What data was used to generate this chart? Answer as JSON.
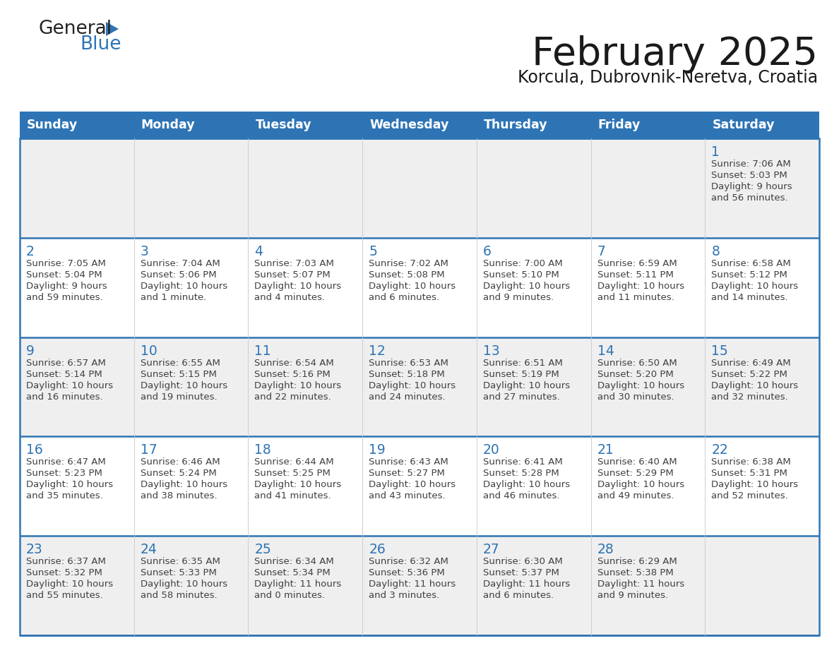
{
  "title": "February 2025",
  "subtitle": "Korcula, Dubrovnik-Neretva, Croatia",
  "header_color": "#2E74B5",
  "header_text_color": "#FFFFFF",
  "grid_line_color": "#2E74B5",
  "day_num_color": "#2E74B5",
  "text_color": "#404040",
  "bg_color": "#FFFFFF",
  "alt_row_color": "#EFEFEF",
  "weekdays": [
    "Sunday",
    "Monday",
    "Tuesday",
    "Wednesday",
    "Thursday",
    "Friday",
    "Saturday"
  ],
  "row_bg_pattern": [
    1,
    0,
    1,
    0,
    1
  ],
  "calendar": [
    [
      {
        "day": "",
        "sunrise": "",
        "sunset": "",
        "daylight": ""
      },
      {
        "day": "",
        "sunrise": "",
        "sunset": "",
        "daylight": ""
      },
      {
        "day": "",
        "sunrise": "",
        "sunset": "",
        "daylight": ""
      },
      {
        "day": "",
        "sunrise": "",
        "sunset": "",
        "daylight": ""
      },
      {
        "day": "",
        "sunrise": "",
        "sunset": "",
        "daylight": ""
      },
      {
        "day": "",
        "sunrise": "",
        "sunset": "",
        "daylight": ""
      },
      {
        "day": "1",
        "sunrise": "7:06 AM",
        "sunset": "5:03 PM",
        "daylight_line1": "Daylight: 9 hours",
        "daylight_line2": "and 56 minutes."
      }
    ],
    [
      {
        "day": "2",
        "sunrise": "7:05 AM",
        "sunset": "5:04 PM",
        "daylight_line1": "Daylight: 9 hours",
        "daylight_line2": "and 59 minutes."
      },
      {
        "day": "3",
        "sunrise": "7:04 AM",
        "sunset": "5:06 PM",
        "daylight_line1": "Daylight: 10 hours",
        "daylight_line2": "and 1 minute."
      },
      {
        "day": "4",
        "sunrise": "7:03 AM",
        "sunset": "5:07 PM",
        "daylight_line1": "Daylight: 10 hours",
        "daylight_line2": "and 4 minutes."
      },
      {
        "day": "5",
        "sunrise": "7:02 AM",
        "sunset": "5:08 PM",
        "daylight_line1": "Daylight: 10 hours",
        "daylight_line2": "and 6 minutes."
      },
      {
        "day": "6",
        "sunrise": "7:00 AM",
        "sunset": "5:10 PM",
        "daylight_line1": "Daylight: 10 hours",
        "daylight_line2": "and 9 minutes."
      },
      {
        "day": "7",
        "sunrise": "6:59 AM",
        "sunset": "5:11 PM",
        "daylight_line1": "Daylight: 10 hours",
        "daylight_line2": "and 11 minutes."
      },
      {
        "day": "8",
        "sunrise": "6:58 AM",
        "sunset": "5:12 PM",
        "daylight_line1": "Daylight: 10 hours",
        "daylight_line2": "and 14 minutes."
      }
    ],
    [
      {
        "day": "9",
        "sunrise": "6:57 AM",
        "sunset": "5:14 PM",
        "daylight_line1": "Daylight: 10 hours",
        "daylight_line2": "and 16 minutes."
      },
      {
        "day": "10",
        "sunrise": "6:55 AM",
        "sunset": "5:15 PM",
        "daylight_line1": "Daylight: 10 hours",
        "daylight_line2": "and 19 minutes."
      },
      {
        "day": "11",
        "sunrise": "6:54 AM",
        "sunset": "5:16 PM",
        "daylight_line1": "Daylight: 10 hours",
        "daylight_line2": "and 22 minutes."
      },
      {
        "day": "12",
        "sunrise": "6:53 AM",
        "sunset": "5:18 PM",
        "daylight_line1": "Daylight: 10 hours",
        "daylight_line2": "and 24 minutes."
      },
      {
        "day": "13",
        "sunrise": "6:51 AM",
        "sunset": "5:19 PM",
        "daylight_line1": "Daylight: 10 hours",
        "daylight_line2": "and 27 minutes."
      },
      {
        "day": "14",
        "sunrise": "6:50 AM",
        "sunset": "5:20 PM",
        "daylight_line1": "Daylight: 10 hours",
        "daylight_line2": "and 30 minutes."
      },
      {
        "day": "15",
        "sunrise": "6:49 AM",
        "sunset": "5:22 PM",
        "daylight_line1": "Daylight: 10 hours",
        "daylight_line2": "and 32 minutes."
      }
    ],
    [
      {
        "day": "16",
        "sunrise": "6:47 AM",
        "sunset": "5:23 PM",
        "daylight_line1": "Daylight: 10 hours",
        "daylight_line2": "and 35 minutes."
      },
      {
        "day": "17",
        "sunrise": "6:46 AM",
        "sunset": "5:24 PM",
        "daylight_line1": "Daylight: 10 hours",
        "daylight_line2": "and 38 minutes."
      },
      {
        "day": "18",
        "sunrise": "6:44 AM",
        "sunset": "5:25 PM",
        "daylight_line1": "Daylight: 10 hours",
        "daylight_line2": "and 41 minutes."
      },
      {
        "day": "19",
        "sunrise": "6:43 AM",
        "sunset": "5:27 PM",
        "daylight_line1": "Daylight: 10 hours",
        "daylight_line2": "and 43 minutes."
      },
      {
        "day": "20",
        "sunrise": "6:41 AM",
        "sunset": "5:28 PM",
        "daylight_line1": "Daylight: 10 hours",
        "daylight_line2": "and 46 minutes."
      },
      {
        "day": "21",
        "sunrise": "6:40 AM",
        "sunset": "5:29 PM",
        "daylight_line1": "Daylight: 10 hours",
        "daylight_line2": "and 49 minutes."
      },
      {
        "day": "22",
        "sunrise": "6:38 AM",
        "sunset": "5:31 PM",
        "daylight_line1": "Daylight: 10 hours",
        "daylight_line2": "and 52 minutes."
      }
    ],
    [
      {
        "day": "23",
        "sunrise": "6:37 AM",
        "sunset": "5:32 PM",
        "daylight_line1": "Daylight: 10 hours",
        "daylight_line2": "and 55 minutes."
      },
      {
        "day": "24",
        "sunrise": "6:35 AM",
        "sunset": "5:33 PM",
        "daylight_line1": "Daylight: 10 hours",
        "daylight_line2": "and 58 minutes."
      },
      {
        "day": "25",
        "sunrise": "6:34 AM",
        "sunset": "5:34 PM",
        "daylight_line1": "Daylight: 11 hours",
        "daylight_line2": "and 0 minutes."
      },
      {
        "day": "26",
        "sunrise": "6:32 AM",
        "sunset": "5:36 PM",
        "daylight_line1": "Daylight: 11 hours",
        "daylight_line2": "and 3 minutes."
      },
      {
        "day": "27",
        "sunrise": "6:30 AM",
        "sunset": "5:37 PM",
        "daylight_line1": "Daylight: 11 hours",
        "daylight_line2": "and 6 minutes."
      },
      {
        "day": "28",
        "sunrise": "6:29 AM",
        "sunset": "5:38 PM",
        "daylight_line1": "Daylight: 11 hours",
        "daylight_line2": "and 9 minutes."
      },
      {
        "day": "",
        "sunrise": "",
        "sunset": "",
        "daylight_line1": "",
        "daylight_line2": ""
      }
    ]
  ]
}
